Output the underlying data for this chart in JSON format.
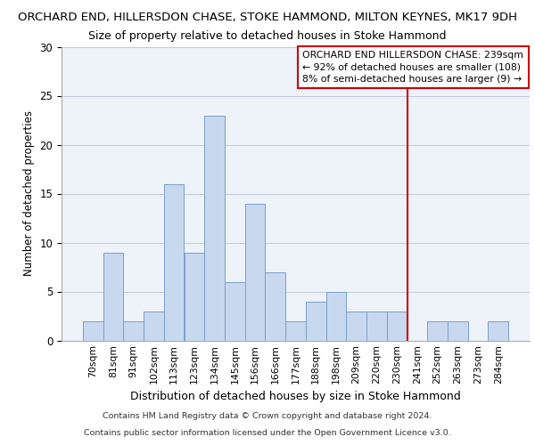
{
  "title_line1": "ORCHARD END, HILLERSDON CHASE, STOKE HAMMOND, MILTON KEYNES, MK17 9DH",
  "title_line2": "Size of property relative to detached houses in Stoke Hammond",
  "xlabel": "Distribution of detached houses by size in Stoke Hammond",
  "ylabel": "Number of detached properties",
  "categories": [
    "70sqm",
    "81sqm",
    "91sqm",
    "102sqm",
    "113sqm",
    "123sqm",
    "134sqm",
    "145sqm",
    "156sqm",
    "166sqm",
    "177sqm",
    "188sqm",
    "198sqm",
    "209sqm",
    "220sqm",
    "230sqm",
    "241sqm",
    "252sqm",
    "263sqm",
    "273sqm",
    "284sqm"
  ],
  "values": [
    2,
    9,
    2,
    3,
    16,
    9,
    23,
    6,
    14,
    7,
    2,
    4,
    5,
    3,
    3,
    3,
    0,
    2,
    2,
    0,
    2
  ],
  "bar_color": "#c8d8ee",
  "bar_edge_color": "#7a9ec8",
  "vline_color": "#cc0000",
  "ylim": [
    0,
    30
  ],
  "yticks": [
    0,
    5,
    10,
    15,
    20,
    25,
    30
  ],
  "annotation_text": "ORCHARD END HILLERSDON CHASE: 239sqm\n← 92% of detached houses are smaller (108)\n8% of semi-detached houses are larger (9) →",
  "annotation_box_color": "#ffffff",
  "annotation_box_edge": "#cc0000",
  "footer_line1": "Contains HM Land Registry data © Crown copyright and database right 2024.",
  "footer_line2": "Contains public sector information licensed under the Open Government Licence v3.0.",
  "fig_bg_color": "#ffffff",
  "plot_bg_color": "#eef3fa",
  "vline_x": 15.5,
  "title_line1_fontsize": 9.5,
  "title_line2_fontsize": 9.0,
  "bar_width": 1.0
}
